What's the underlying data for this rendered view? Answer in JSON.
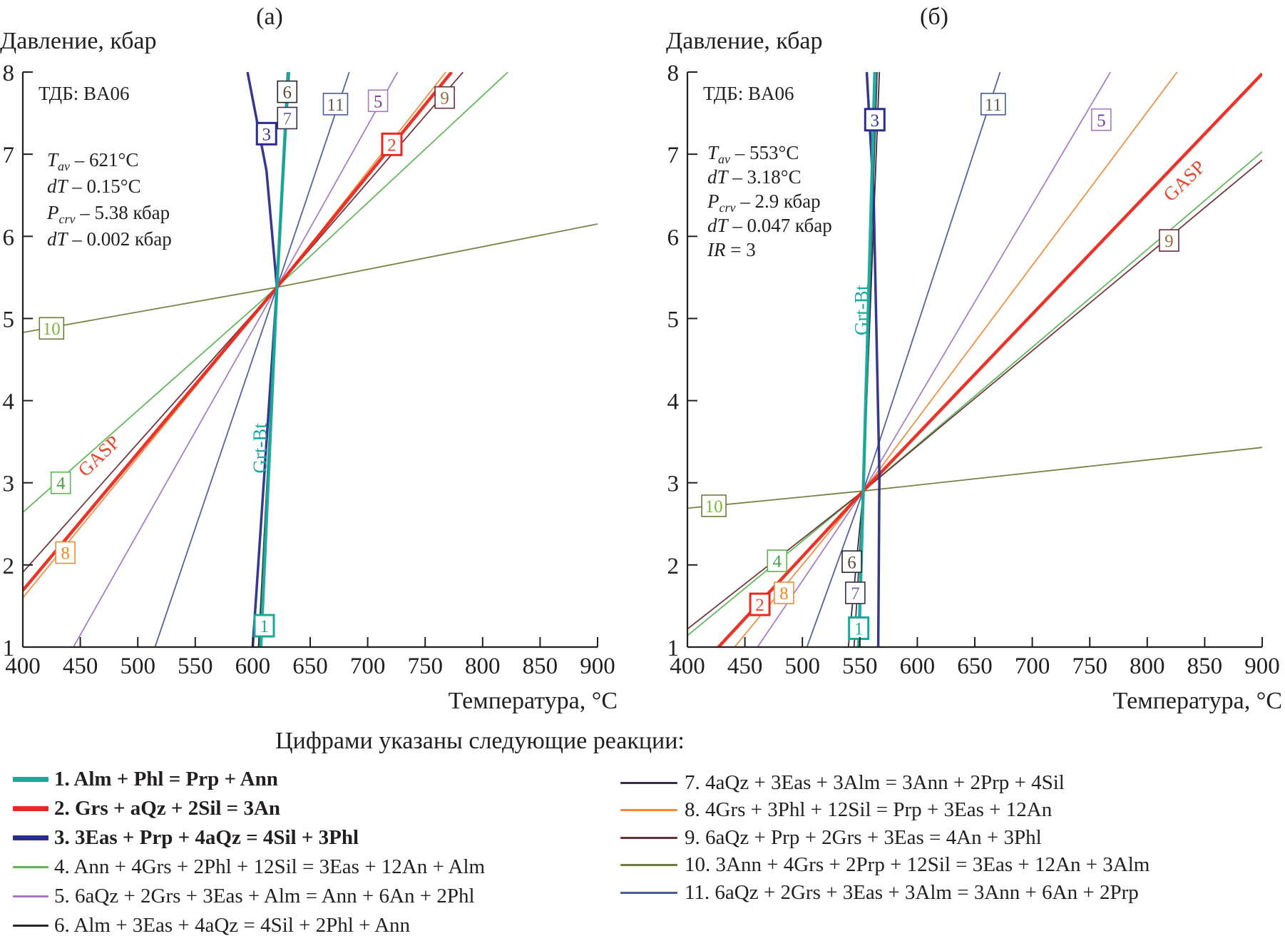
{
  "chart_data": [
    {
      "type": "line",
      "panel_label": "(a)",
      "ylabel": "Давление, кбар",
      "xlabel": "Температура, °C",
      "xlim": [
        400,
        900
      ],
      "ylim": [
        1,
        8
      ],
      "xticks": [
        400,
        450,
        500,
        550,
        600,
        650,
        700,
        750,
        800,
        850,
        900
      ],
      "yticks": [
        1,
        2,
        3,
        4,
        5,
        6,
        7,
        8
      ],
      "grid": false,
      "info_lines": [
        {
          "text": "ТДБ: BA06"
        },
        {
          "sym": "T",
          "sub": "av",
          "text": " – 621°C"
        },
        {
          "sym": "dT",
          "sub": "",
          "text": " – 0.15°C"
        },
        {
          "sym": "P",
          "sub": "crv",
          "text": " – 5.38 кбар"
        },
        {
          "sym": "dT",
          "sub": "",
          "text": " – 0.002 кбар"
        }
      ],
      "intersection": {
        "T": 621,
        "P": 5.38
      },
      "series": [
        {
          "id": 1,
          "points": [
            [
              607,
              1
            ],
            [
              621,
              5.38
            ],
            [
              631,
              8
            ]
          ]
        },
        {
          "id": 2,
          "points": [
            [
              400,
              1.69
            ],
            [
              621,
              5.38
            ],
            [
              773,
              8
            ]
          ]
        },
        {
          "id": 3,
          "points": [
            [
              600,
              1
            ],
            [
              621,
              5.38
            ],
            [
              612,
              6.8
            ],
            [
              595.5,
              8
            ]
          ]
        },
        {
          "id": 4,
          "points": [
            [
              400,
              2.64
            ],
            [
              621,
              5.38
            ],
            [
              822,
              8
            ]
          ]
        },
        {
          "id": 5,
          "points": [
            [
              444,
              1
            ],
            [
              621,
              5.38
            ],
            [
              726,
              8
            ]
          ]
        },
        {
          "id": 6,
          "points": [
            [
              605,
              1
            ],
            [
              621,
              5.38
            ],
            [
              632,
              8
            ]
          ]
        },
        {
          "id": 7,
          "points": [
            [
              606,
              1
            ],
            [
              621,
              5.38
            ],
            [
              630,
              8
            ]
          ]
        },
        {
          "id": 8,
          "points": [
            [
              400,
              1.6
            ],
            [
              621,
              5.38
            ],
            [
              768,
              8
            ]
          ]
        },
        {
          "id": 9,
          "points": [
            [
              400,
              1.91
            ],
            [
              621,
              5.38
            ],
            [
              783,
              8
            ]
          ]
        },
        {
          "id": 10,
          "points": [
            [
              400,
              4.83
            ],
            [
              621,
              5.38
            ],
            [
              900,
              6.15
            ]
          ]
        },
        {
          "id": 11,
          "points": [
            [
              515,
              1
            ],
            [
              621,
              5.38
            ],
            [
              684,
              8
            ]
          ]
        }
      ],
      "boxed_labels": [
        {
          "text": "3",
          "series": 3,
          "T": 612,
          "P": 7.25
        },
        {
          "text": "6",
          "series": 6,
          "T": 630,
          "P": 7.76
        },
        {
          "text": "7",
          "series": 7,
          "T": 630,
          "P": 7.44
        },
        {
          "text": "11",
          "series": 11,
          "T": 672,
          "P": 7.61
        },
        {
          "text": "5",
          "series": 5,
          "T": 709,
          "P": 7.65
        },
        {
          "text": "2",
          "series": 2,
          "T": 721,
          "P": 7.12
        },
        {
          "text": "9",
          "series": 9,
          "T": 767,
          "P": 7.69
        },
        {
          "text": "10",
          "series": 10,
          "T": 425,
          "P": 4.88
        },
        {
          "text": "4",
          "series": 4,
          "T": 433,
          "P": 3.0
        },
        {
          "text": "8",
          "series": 8,
          "T": 437,
          "P": 2.15
        },
        {
          "text": "1",
          "series": 1,
          "T": 610,
          "P": 1.26
        }
      ],
      "annotations": [
        {
          "text": "GASP",
          "T": 470,
          "P": 3.27,
          "angle": -44,
          "color": "#e8452b"
        },
        {
          "text": "Grt-Bt",
          "T": 612,
          "P": 3.42,
          "angle": -90,
          "color": "#1aa8a0",
          "italic_part": "Bt"
        }
      ]
    },
    {
      "type": "line",
      "panel_label": "(б)",
      "ylabel": "Давление, кбар",
      "xlabel": "Температура, °C",
      "xlim": [
        400,
        900
      ],
      "ylim": [
        1,
        8
      ],
      "xticks": [
        400,
        450,
        500,
        550,
        600,
        650,
        700,
        750,
        800,
        850,
        900
      ],
      "yticks": [
        1,
        2,
        3,
        4,
        5,
        6,
        7,
        8
      ],
      "grid": false,
      "info_lines": [
        {
          "text": "ТДБ: BA06"
        },
        {
          "sym": "T",
          "sub": "av",
          "text": " – 553°C"
        },
        {
          "sym": "dT",
          "sub": "",
          "text": " – 3.18°C"
        },
        {
          "sym": "P",
          "sub": "crv",
          "text": " – 2.9 кбар"
        },
        {
          "sym": "dT",
          "sub": "",
          "text": " – 0.047 кбар"
        },
        {
          "sym": "IR",
          "sub": "",
          "text": " = 3"
        }
      ],
      "intersection": {
        "T": 553,
        "P": 2.9
      },
      "series": [
        {
          "id": 1,
          "points": [
            [
              549,
              1
            ],
            [
              553,
              2.9
            ],
            [
              563,
              8
            ]
          ]
        },
        {
          "id": 2,
          "points": [
            [
              427,
              1
            ],
            [
              553,
              2.9
            ],
            [
              900,
              7.98
            ]
          ]
        },
        {
          "id": 3,
          "points": [
            [
              566,
              1
            ],
            [
              567,
              3.1
            ],
            [
              562,
              6.5
            ],
            [
              556,
              8
            ]
          ]
        },
        {
          "id": 4,
          "points": [
            [
              400,
              1.14
            ],
            [
              553,
              2.9
            ],
            [
              900,
              7.03
            ]
          ]
        },
        {
          "id": 5,
          "points": [
            [
              461,
              1
            ],
            [
              553,
              2.9
            ],
            [
              768,
              8
            ]
          ]
        },
        {
          "id": 6,
          "points": [
            [
              540,
              1
            ],
            [
              553,
              2.9
            ],
            [
              567,
              8
            ]
          ]
        },
        {
          "id": 7,
          "points": [
            [
              545,
              1
            ],
            [
              553,
              2.9
            ],
            [
              565,
              8
            ]
          ]
        },
        {
          "id": 8,
          "points": [
            [
              441,
              1
            ],
            [
              553,
              2.9
            ],
            [
              826,
              8
            ]
          ]
        },
        {
          "id": 9,
          "points": [
            [
              400,
              1.22
            ],
            [
              553,
              2.9
            ],
            [
              900,
              6.93
            ]
          ]
        },
        {
          "id": 10,
          "points": [
            [
              400,
              2.69
            ],
            [
              553,
              2.9
            ],
            [
              900,
              3.43
            ]
          ]
        },
        {
          "id": 11,
          "points": [
            [
              504,
              1
            ],
            [
              553,
              2.9
            ],
            [
              672,
              8
            ]
          ]
        }
      ],
      "boxed_labels": [
        {
          "text": "3",
          "series": 3,
          "T": 563,
          "P": 7.42
        },
        {
          "text": "11",
          "series": 11,
          "T": 666,
          "P": 7.61
        },
        {
          "text": "5",
          "series": 5,
          "T": 760,
          "P": 7.42
        },
        {
          "text": "9",
          "series": 9,
          "T": 819,
          "P": 5.95
        },
        {
          "text": "10",
          "series": 10,
          "T": 423,
          "P": 2.72
        },
        {
          "text": "4",
          "series": 4,
          "T": 478,
          "P": 2.05
        },
        {
          "text": "2",
          "series": 2,
          "T": 463,
          "P": 1.52
        },
        {
          "text": "8",
          "series": 8,
          "T": 484,
          "P": 1.66
        },
        {
          "text": "6",
          "series": 6,
          "T": 543,
          "P": 2.04
        },
        {
          "text": "7",
          "series": 7,
          "T": 546,
          "P": 1.66
        },
        {
          "text": "1",
          "series": 1,
          "T": 549,
          "P": 1.23
        }
      ],
      "annotations": [
        {
          "text": "GASP",
          "T": 836,
          "P": 6.62,
          "angle": -44,
          "color": "#e8452b"
        },
        {
          "text": "Grt-Bt",
          "T": 557,
          "P": 5.1,
          "angle": -90,
          "color": "#1aa8a0",
          "italic_part": "Bt"
        }
      ]
    }
  ],
  "series_styles": {
    "1": {
      "color": "#1aa89a",
      "bold": true
    },
    "2": {
      "color": "#e8291f",
      "bold": true
    },
    "3": {
      "color": "#2b2d8a",
      "bold": true
    },
    "4": {
      "color": "#5ab552",
      "bold": false
    },
    "5": {
      "color": "#a677c0",
      "bold": false
    },
    "6": {
      "color": "#222628",
      "bold": false
    },
    "7": {
      "color": "#3a2b4e",
      "bold": false
    },
    "8": {
      "color": "#f08a3a",
      "bold": false
    },
    "9": {
      "color": "#6b2c34",
      "bold": false
    },
    "10": {
      "color": "#6c7d3a",
      "bold": false
    },
    "11": {
      "color": "#4a5a9a",
      "bold": false
    }
  },
  "label_text_colors": {
    "1": "#1aa89a",
    "2": "#e8452b",
    "3": "#2b3aa0",
    "4": "#3aa843",
    "5": "#7a3a9a",
    "6": "#5a4a3a",
    "7": "#7a6a9a",
    "8": "#f08a20",
    "9": "#9a6a3a",
    "10": "#7ab83a",
    "11": "#6a5a4a"
  },
  "legend": {
    "title": "Цифрами указаны следующие реакции:",
    "items": [
      {
        "id": 1,
        "label": "1. Alm + Phl = Prp + Ann"
      },
      {
        "id": 2,
        "label": "2. Grs + aQz + 2Sil = 3An"
      },
      {
        "id": 3,
        "label": "3. 3Eas + Prp + 4aQz = 4Sil + 3Phl"
      },
      {
        "id": 4,
        "label": "4. Ann + 4Grs + 2Phl + 12Sil =  3Eas + 12An + Alm"
      },
      {
        "id": 5,
        "label": "5. 6aQz + 2Grs + 3Eas + Alm = Ann + 6An + 2Phl"
      },
      {
        "id": 6,
        "label": "6. Alm + 3Eas + 4aQz = 4Sil + 2Phl + Ann"
      },
      {
        "id": 7,
        "label": "7. 4aQz + 3Eas + 3Alm = 3Ann + 2Prp + 4Sil"
      },
      {
        "id": 8,
        "label": "8. 4Grs + 3Phl + 12Sil = Prp + 3Eas + 12An"
      },
      {
        "id": 9,
        "label": "9. 6aQz + Prp + 2Grs + 3Eas = 4An + 3Phl"
      },
      {
        "id": 10,
        "label": "10. 3Ann + 4Grs + 2Prp + 12Sil =  3Eas + 12An + 3Alm"
      },
      {
        "id": 11,
        "label": "11. 6aQz + 2Grs + 3Eas + 3Alm = 3Ann + 6An + 2Prp"
      }
    ]
  }
}
